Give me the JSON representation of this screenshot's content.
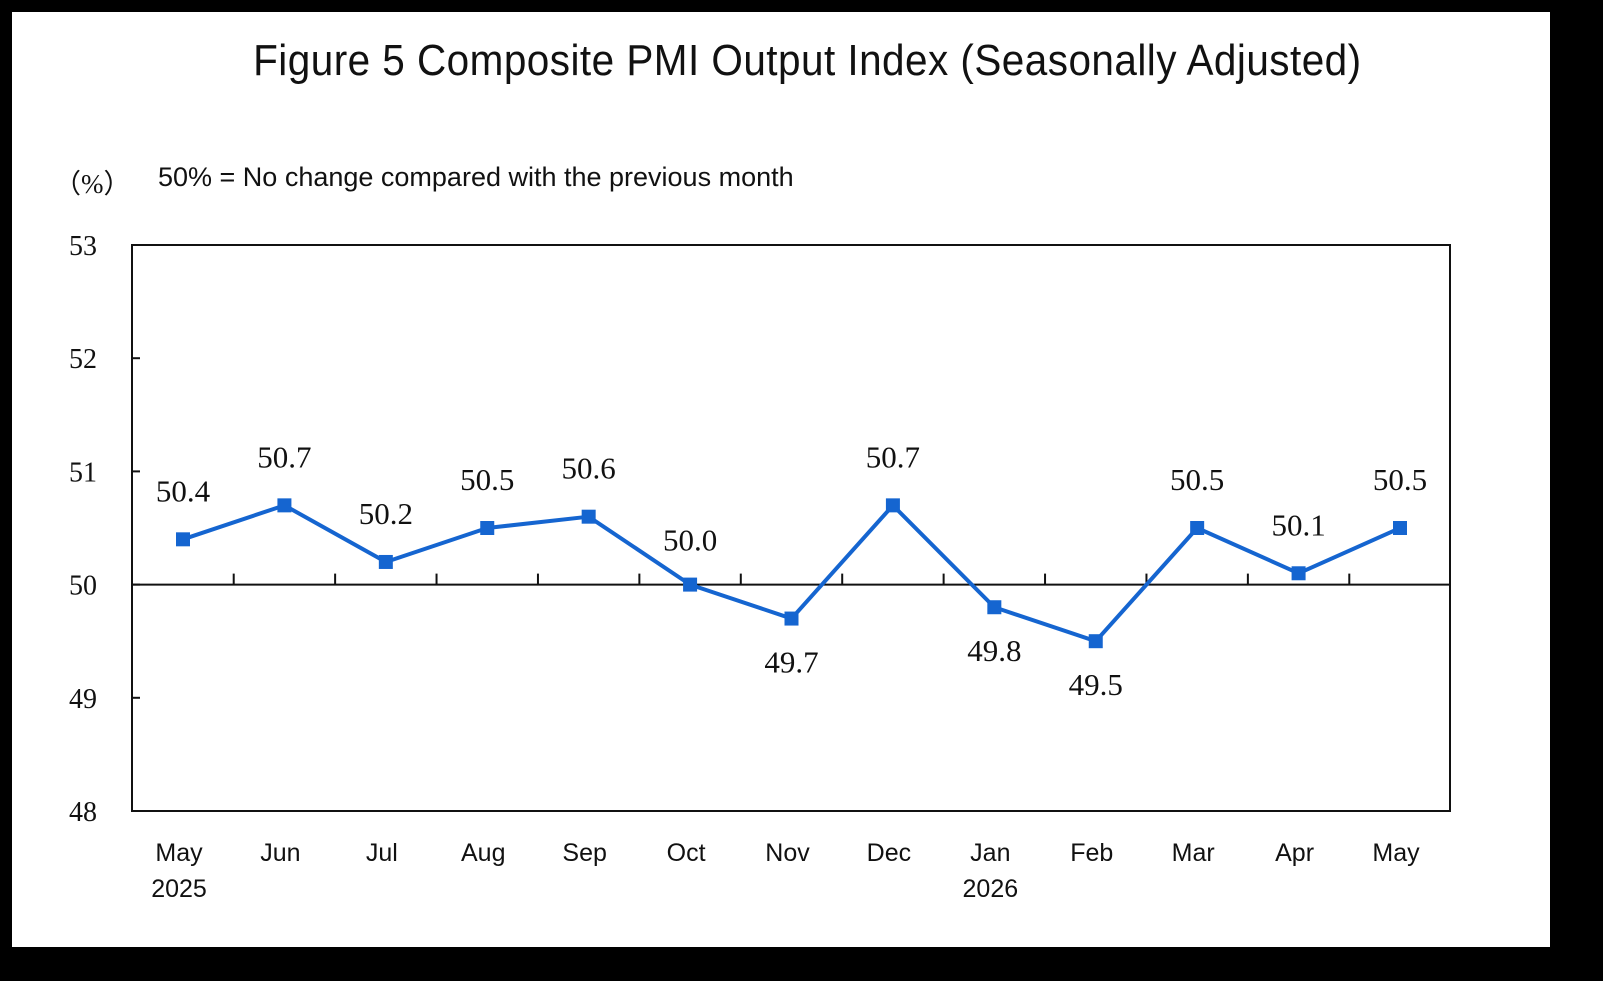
{
  "chart_data": {
    "type": "line",
    "title": "Figure 5  Composite PMI Output Index (Seasonally Adjusted)",
    "unit_label": "（%）",
    "note": "50% = No change compared with the previous month",
    "categories": [
      "May",
      "Jun",
      "Jul",
      "Aug",
      "Sep",
      "Oct",
      "Nov",
      "Dec",
      "Jan",
      "Feb",
      "Mar",
      "Apr",
      "May"
    ],
    "year_labels": [
      "2025",
      "",
      "",
      "",
      "",
      "",
      "",
      "",
      "2026",
      "",
      "",
      "",
      ""
    ],
    "series": [
      {
        "values": [
          50.4,
          50.7,
          50.2,
          50.5,
          50.6,
          50.0,
          49.7,
          50.7,
          49.8,
          49.5,
          50.5,
          50.1,
          50.5
        ],
        "data_labels": [
          "50.4",
          "50.7",
          "50.2",
          "50.5",
          "50.6",
          "50.0",
          "49.7",
          "50.7",
          "49.8",
          "49.5",
          "50.5",
          "50.1",
          "50.5"
        ],
        "color": "#1565d0"
      }
    ],
    "ylim": [
      48,
      53
    ],
    "yticks": [
      48,
      49,
      50,
      51,
      52,
      53
    ],
    "reference_line": 50,
    "marker": "square",
    "grid": false,
    "legend": "none"
  }
}
